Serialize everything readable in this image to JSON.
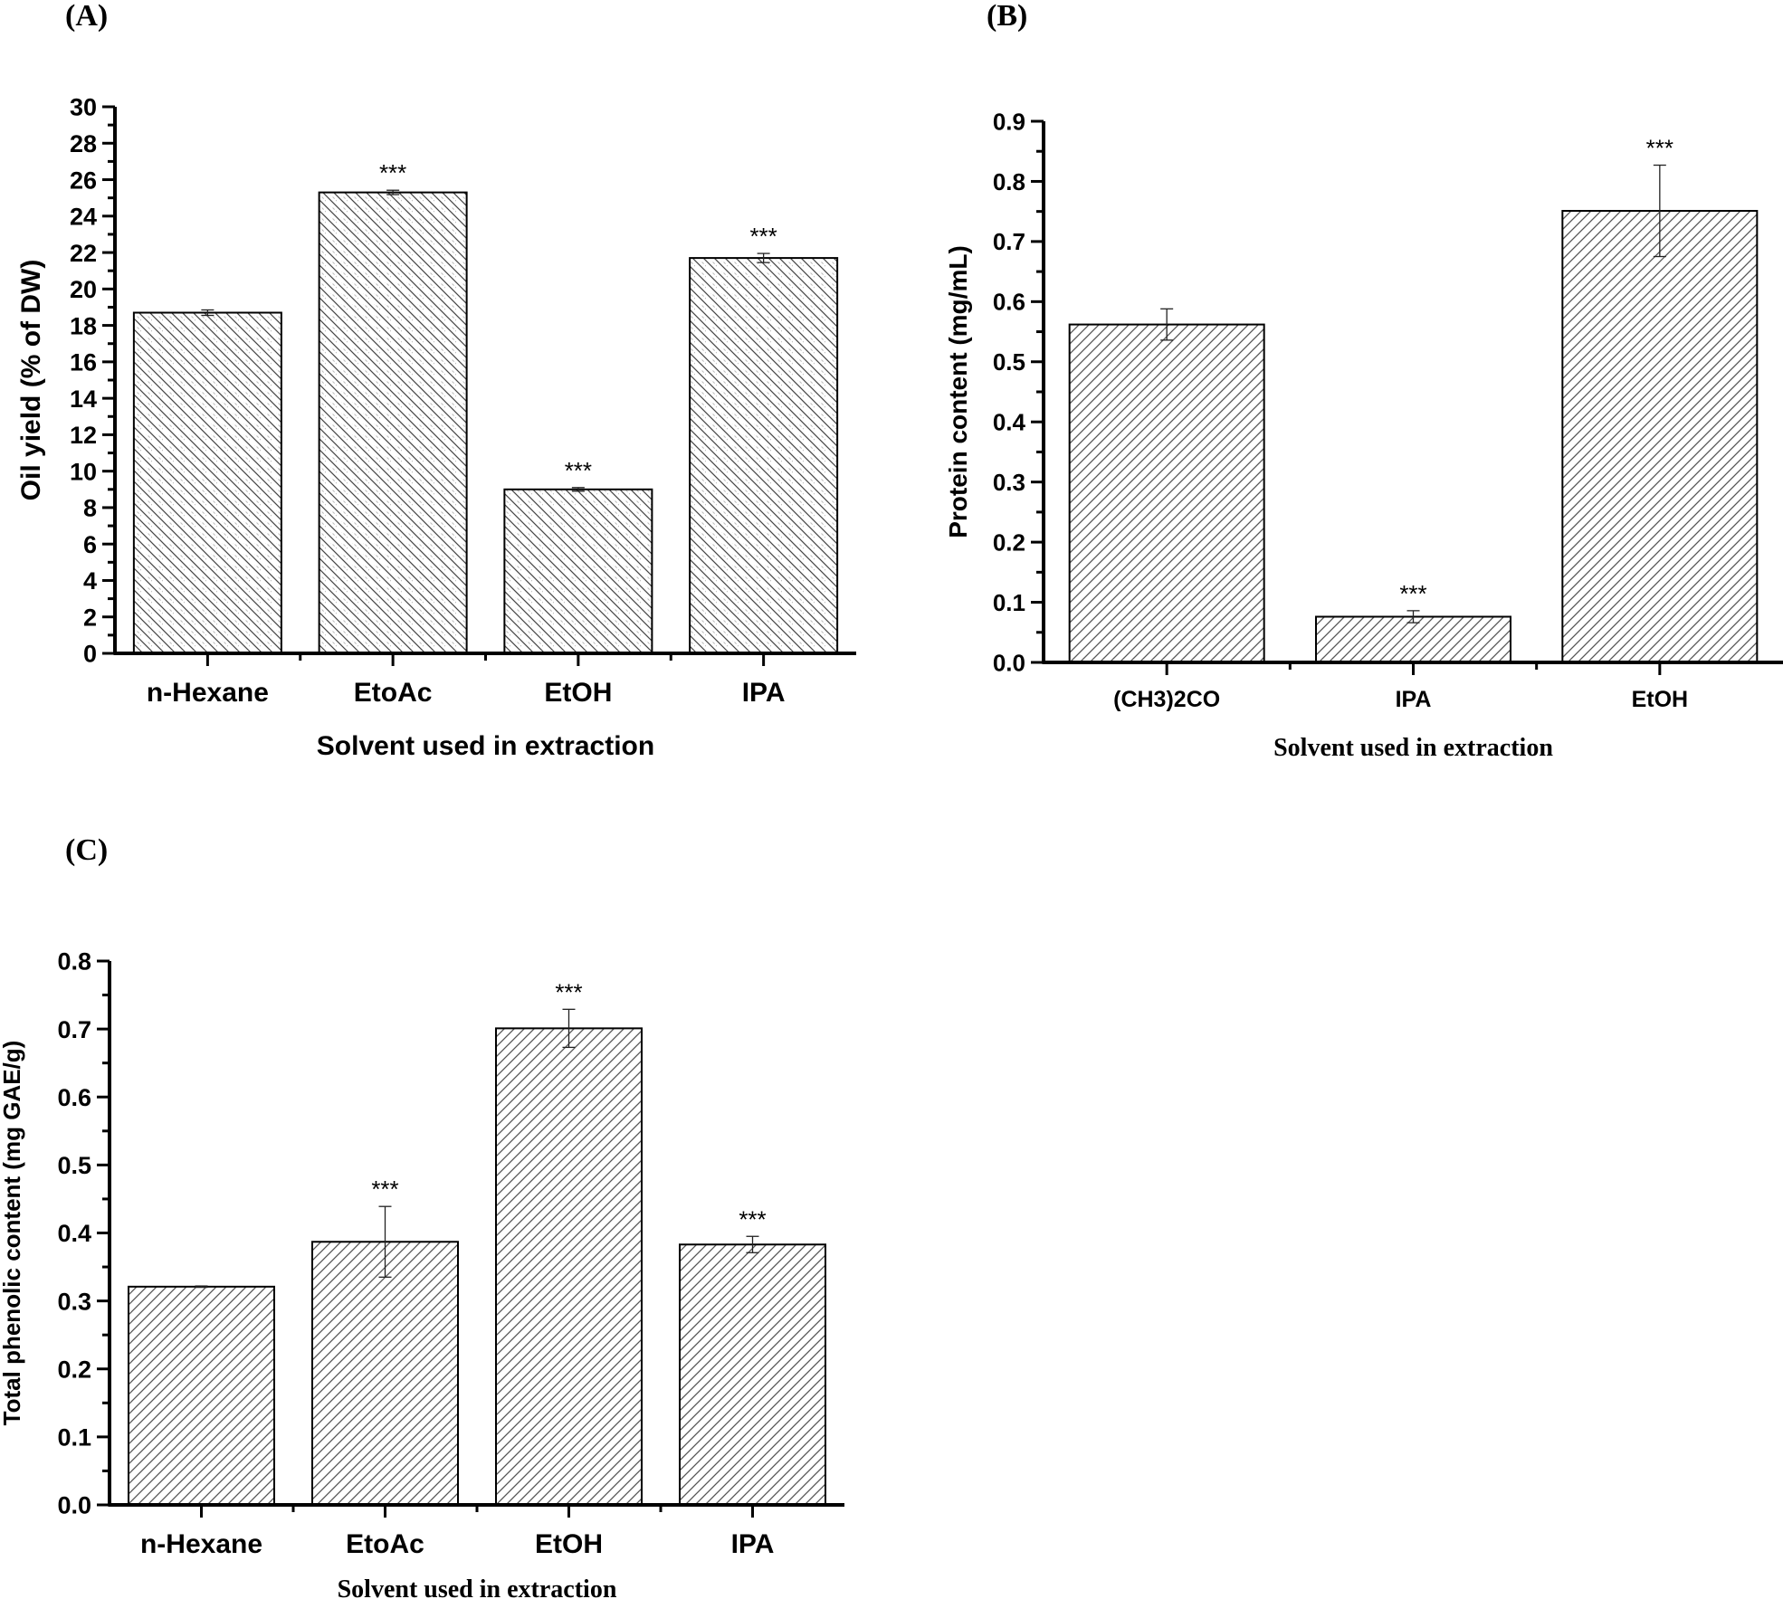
{
  "chart_data": [
    {
      "panel": "(A)",
      "type": "bar",
      "categories": [
        "n-Hexane",
        "EtoAc",
        "EtOH",
        "IPA"
      ],
      "values": [
        18.7,
        25.3,
        9.0,
        21.7
      ],
      "errors": [
        0.15,
        0.12,
        0.1,
        0.25
      ],
      "annotations": [
        "",
        "***",
        "***",
        "***"
      ],
      "xlabel": "Solvent used in  extraction",
      "ylabel": "Oil yield (% of DW)",
      "ylim": [
        0,
        30
      ],
      "yticks": [
        "0",
        "2",
        "4",
        "6",
        "8",
        "10",
        "12",
        "14",
        "16",
        "18",
        "20",
        "22",
        "24",
        "26",
        "28",
        "30"
      ],
      "hatch": "backslash",
      "grid": false
    },
    {
      "panel": "(B)",
      "type": "bar",
      "categories": [
        "(CH3)2CO",
        "IPA",
        "EtOH"
      ],
      "values": [
        0.562,
        0.076,
        0.751
      ],
      "errors": [
        0.026,
        0.01,
        0.076
      ],
      "annotations": [
        "",
        "***",
        "***"
      ],
      "xlabel": "Solvent used in extraction",
      "ylabel": "Protein content  (mg/mL)",
      "ylim": [
        0,
        0.9
      ],
      "yticks": [
        "0.0",
        "0.1",
        "0.2",
        "0.3",
        "0.4",
        "0.5",
        "0.6",
        "0.7",
        "0.8",
        "0.9"
      ],
      "hatch": "slash",
      "grid": false
    },
    {
      "panel": "(C)",
      "type": "bar",
      "categories": [
        "n-Hexane",
        "EtoAc",
        "EtOH",
        "IPA"
      ],
      "values": [
        0.321,
        0.387,
        0.701,
        0.383
      ],
      "errors": [
        0.001,
        0.052,
        0.028,
        0.012
      ],
      "annotations": [
        "",
        "***",
        "***",
        "***"
      ],
      "xlabel": "Solvent used in extraction",
      "ylabel": "Total phenolic content (mg GAE/g)",
      "ylim": [
        0,
        0.8
      ],
      "yticks": [
        "0.0",
        "0.1",
        "0.2",
        "0.3",
        "0.4",
        "0.5",
        "0.6",
        "0.7",
        "0.8"
      ],
      "hatch": "slash",
      "grid": false
    }
  ]
}
